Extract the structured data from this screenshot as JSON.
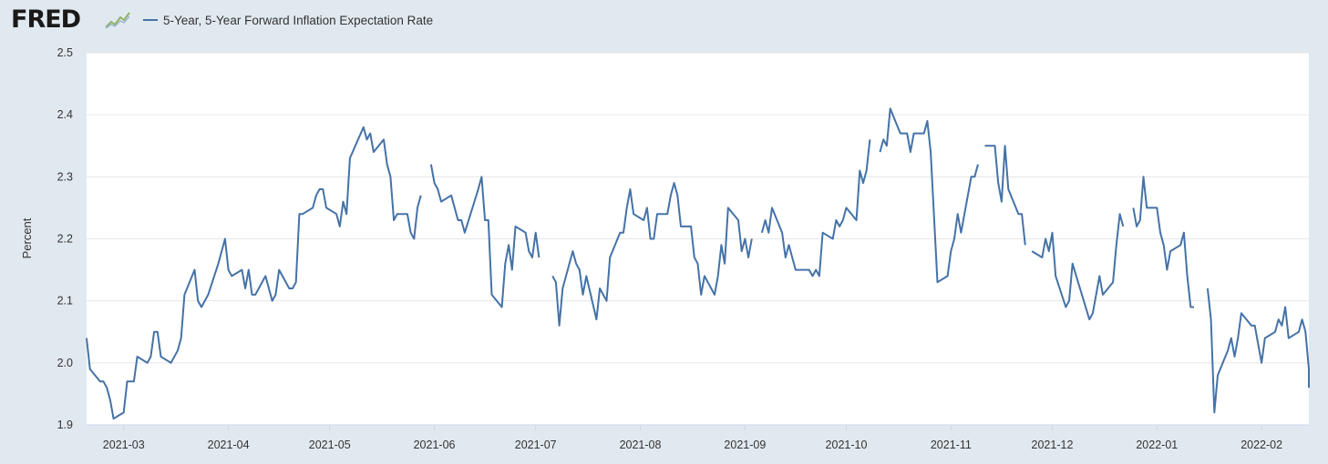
{
  "header": {
    "logo_text": "FRED",
    "logo_icon": "fred-chart-icon",
    "legend_label": "5-Year, 5-Year Forward Inflation Expectation Rate"
  },
  "colors": {
    "background": "#e1e9f0",
    "plot": "#ffffff",
    "series": "#4572a7",
    "grid": "#e6e6e6"
  },
  "chart_data": {
    "type": "line",
    "title": "",
    "xlabel": "",
    "ylabel": "Percent",
    "ylim": [
      1.9,
      2.5
    ],
    "yticks": [
      "1.9",
      "2.0",
      "2.1",
      "2.2",
      "2.3",
      "2.4",
      "2.5"
    ],
    "xlim": [
      0,
      362
    ],
    "xticks": [
      {
        "label": "2021-03",
        "x": 11
      },
      {
        "label": "2021-04",
        "x": 42
      },
      {
        "label": "2021-05",
        "x": 72
      },
      {
        "label": "2021-06",
        "x": 103
      },
      {
        "label": "2021-07",
        "x": 133
      },
      {
        "label": "2021-08",
        "x": 164
      },
      {
        "label": "2021-09",
        "x": 195
      },
      {
        "label": "2021-10",
        "x": 225
      },
      {
        "label": "2021-11",
        "x": 256
      },
      {
        "label": "2021-12",
        "x": 286
      },
      {
        "label": "2022-01",
        "x": 317
      },
      {
        "label": "2022-02",
        "x": 348
      }
    ],
    "x_unit": "days since 2021-02-18",
    "series": [
      {
        "name": "5-Year, 5-Year Forward Inflation Expectation Rate",
        "segments": [
          [
            [
              0,
              2.04
            ],
            [
              1,
              1.99
            ],
            [
              4,
              1.97
            ],
            [
              5,
              1.97
            ],
            [
              6,
              1.96
            ],
            [
              7,
              1.94
            ],
            [
              8,
              1.91
            ],
            [
              11,
              1.92
            ],
            [
              12,
              1.97
            ],
            [
              14,
              1.97
            ],
            [
              15,
              2.01
            ],
            [
              18,
              2.0
            ],
            [
              19,
              2.01
            ],
            [
              20,
              2.05
            ],
            [
              21,
              2.05
            ],
            [
              22,
              2.01
            ],
            [
              25,
              2.0
            ],
            [
              27,
              2.02
            ],
            [
              28,
              2.04
            ],
            [
              29,
              2.11
            ],
            [
              32,
              2.15
            ],
            [
              33,
              2.1
            ],
            [
              34,
              2.09
            ],
            [
              36,
              2.11
            ],
            [
              39,
              2.16
            ],
            [
              41,
              2.2
            ],
            [
              42,
              2.15
            ],
            [
              43,
              2.14
            ],
            [
              46,
              2.15
            ],
            [
              47,
              2.12
            ],
            [
              48,
              2.15
            ],
            [
              49,
              2.11
            ],
            [
              50,
              2.11
            ],
            [
              53,
              2.14
            ],
            [
              55,
              2.1
            ],
            [
              56,
              2.11
            ],
            [
              57,
              2.15
            ],
            [
              60,
              2.12
            ],
            [
              61,
              2.12
            ],
            [
              62,
              2.13
            ],
            [
              63,
              2.24
            ],
            [
              64,
              2.24
            ],
            [
              67,
              2.25
            ],
            [
              68,
              2.27
            ],
            [
              69,
              2.28
            ],
            [
              70,
              2.28
            ],
            [
              71,
              2.25
            ],
            [
              74,
              2.24
            ],
            [
              75,
              2.22
            ],
            [
              76,
              2.26
            ],
            [
              77,
              2.24
            ],
            [
              78,
              2.33
            ],
            [
              82,
              2.38
            ],
            [
              83,
              2.36
            ],
            [
              84,
              2.37
            ],
            [
              85,
              2.34
            ],
            [
              88,
              2.36
            ],
            [
              89,
              2.32
            ],
            [
              90,
              2.3
            ],
            [
              91,
              2.23
            ],
            [
              92,
              2.24
            ],
            [
              95,
              2.24
            ],
            [
              96,
              2.21
            ],
            [
              97,
              2.2
            ],
            [
              98,
              2.25
            ],
            [
              99,
              2.27
            ]
          ],
          [
            [
              102,
              2.32
            ],
            [
              103,
              2.29
            ],
            [
              104,
              2.28
            ],
            [
              105,
              2.26
            ],
            [
              108,
              2.27
            ],
            [
              110,
              2.23
            ],
            [
              111,
              2.23
            ],
            [
              112,
              2.21
            ],
            [
              116,
              2.28
            ],
            [
              117,
              2.3
            ],
            [
              118,
              2.23
            ],
            [
              119,
              2.23
            ],
            [
              120,
              2.11
            ],
            [
              123,
              2.09
            ],
            [
              124,
              2.16
            ],
            [
              125,
              2.19
            ],
            [
              126,
              2.15
            ],
            [
              127,
              2.22
            ],
            [
              130,
              2.21
            ],
            [
              131,
              2.18
            ],
            [
              132,
              2.17
            ],
            [
              133,
              2.21
            ],
            [
              134,
              2.17
            ]
          ],
          [
            [
              138,
              2.14
            ],
            [
              139,
              2.13
            ],
            [
              140,
              2.06
            ],
            [
              141,
              2.12
            ],
            [
              144,
              2.18
            ],
            [
              145,
              2.16
            ],
            [
              146,
              2.15
            ],
            [
              147,
              2.11
            ],
            [
              148,
              2.14
            ],
            [
              151,
              2.07
            ],
            [
              152,
              2.12
            ],
            [
              154,
              2.1
            ],
            [
              155,
              2.17
            ],
            [
              158,
              2.21
            ],
            [
              159,
              2.21
            ],
            [
              160,
              2.25
            ],
            [
              161,
              2.28
            ],
            [
              162,
              2.24
            ],
            [
              165,
              2.23
            ],
            [
              166,
              2.25
            ],
            [
              167,
              2.2
            ],
            [
              168,
              2.2
            ],
            [
              169,
              2.24
            ],
            [
              172,
              2.24
            ],
            [
              173,
              2.27
            ],
            [
              174,
              2.29
            ],
            [
              175,
              2.27
            ],
            [
              176,
              2.22
            ],
            [
              179,
              2.22
            ],
            [
              180,
              2.17
            ],
            [
              181,
              2.16
            ],
            [
              182,
              2.11
            ],
            [
              183,
              2.14
            ],
            [
              186,
              2.11
            ],
            [
              187,
              2.14
            ],
            [
              188,
              2.19
            ],
            [
              189,
              2.16
            ],
            [
              190,
              2.25
            ],
            [
              193,
              2.23
            ],
            [
              194,
              2.18
            ],
            [
              195,
              2.2
            ],
            [
              196,
              2.17
            ],
            [
              197,
              2.2
            ]
          ],
          [
            [
              200,
              2.21
            ],
            [
              201,
              2.23
            ],
            [
              202,
              2.21
            ],
            [
              203,
              2.25
            ],
            [
              206,
              2.21
            ],
            [
              207,
              2.17
            ],
            [
              208,
              2.19
            ],
            [
              209,
              2.17
            ],
            [
              210,
              2.15
            ],
            [
              214,
              2.15
            ],
            [
              215,
              2.14
            ],
            [
              216,
              2.15
            ],
            [
              217,
              2.14
            ],
            [
              218,
              2.21
            ],
            [
              221,
              2.2
            ],
            [
              222,
              2.23
            ],
            [
              223,
              2.22
            ],
            [
              224,
              2.23
            ],
            [
              225,
              2.25
            ],
            [
              228,
              2.23
            ],
            [
              229,
              2.31
            ],
            [
              230,
              2.29
            ],
            [
              231,
              2.31
            ],
            [
              232,
              2.36
            ]
          ],
          [
            [
              235,
              2.34
            ],
            [
              236,
              2.36
            ],
            [
              237,
              2.35
            ],
            [
              238,
              2.41
            ],
            [
              241,
              2.37
            ],
            [
              243,
              2.37
            ],
            [
              244,
              2.34
            ],
            [
              245,
              2.37
            ],
            [
              248,
              2.37
            ],
            [
              249,
              2.39
            ],
            [
              250,
              2.34
            ],
            [
              252,
              2.13
            ],
            [
              255,
              2.14
            ],
            [
              256,
              2.18
            ],
            [
              257,
              2.2
            ],
            [
              258,
              2.24
            ],
            [
              259,
              2.21
            ],
            [
              262,
              2.3
            ],
            [
              263,
              2.3
            ],
            [
              264,
              2.32
            ]
          ],
          [
            [
              266,
              2.35
            ],
            [
              269,
              2.35
            ],
            [
              270,
              2.29
            ],
            [
              271,
              2.26
            ],
            [
              272,
              2.35
            ],
            [
              273,
              2.28
            ],
            [
              276,
              2.24
            ],
            [
              277,
              2.24
            ],
            [
              278,
              2.19
            ]
          ],
          [
            [
              280,
              2.18
            ],
            [
              283,
              2.17
            ],
            [
              284,
              2.2
            ],
            [
              285,
              2.18
            ],
            [
              286,
              2.21
            ],
            [
              287,
              2.14
            ],
            [
              290,
              2.09
            ],
            [
              291,
              2.1
            ],
            [
              292,
              2.16
            ],
            [
              297,
              2.07
            ],
            [
              298,
              2.08
            ],
            [
              299,
              2.11
            ],
            [
              300,
              2.14
            ],
            [
              301,
              2.11
            ],
            [
              304,
              2.13
            ],
            [
              305,
              2.19
            ],
            [
              306,
              2.24
            ],
            [
              307,
              2.22
            ]
          ],
          [
            [
              310,
              2.25
            ],
            [
              311,
              2.22
            ],
            [
              312,
              2.23
            ],
            [
              313,
              2.3
            ],
            [
              314,
              2.25
            ],
            [
              317,
              2.25
            ],
            [
              318,
              2.21
            ],
            [
              319,
              2.19
            ],
            [
              320,
              2.15
            ],
            [
              321,
              2.18
            ],
            [
              324,
              2.19
            ],
            [
              325,
              2.21
            ],
            [
              326,
              2.14
            ],
            [
              327,
              2.09
            ],
            [
              328,
              2.09
            ]
          ],
          [
            [
              332,
              2.12
            ],
            [
              333,
              2.07
            ],
            [
              334,
              1.92
            ],
            [
              335,
              1.98
            ],
            [
              338,
              2.02
            ],
            [
              339,
              2.04
            ],
            [
              340,
              2.01
            ],
            [
              341,
              2.04
            ],
            [
              342,
              2.08
            ],
            [
              345,
              2.06
            ],
            [
              346,
              2.06
            ],
            [
              347,
              2.03
            ],
            [
              348,
              2.0
            ],
            [
              349,
              2.04
            ],
            [
              352,
              2.05
            ],
            [
              353,
              2.07
            ],
            [
              354,
              2.06
            ],
            [
              355,
              2.09
            ],
            [
              356,
              2.04
            ],
            [
              359,
              2.05
            ],
            [
              360,
              2.07
            ],
            [
              361,
              2.05
            ],
            [
              362,
              1.99
            ],
            [
              363,
              1.96
            ]
          ]
        ]
      }
    ]
  }
}
